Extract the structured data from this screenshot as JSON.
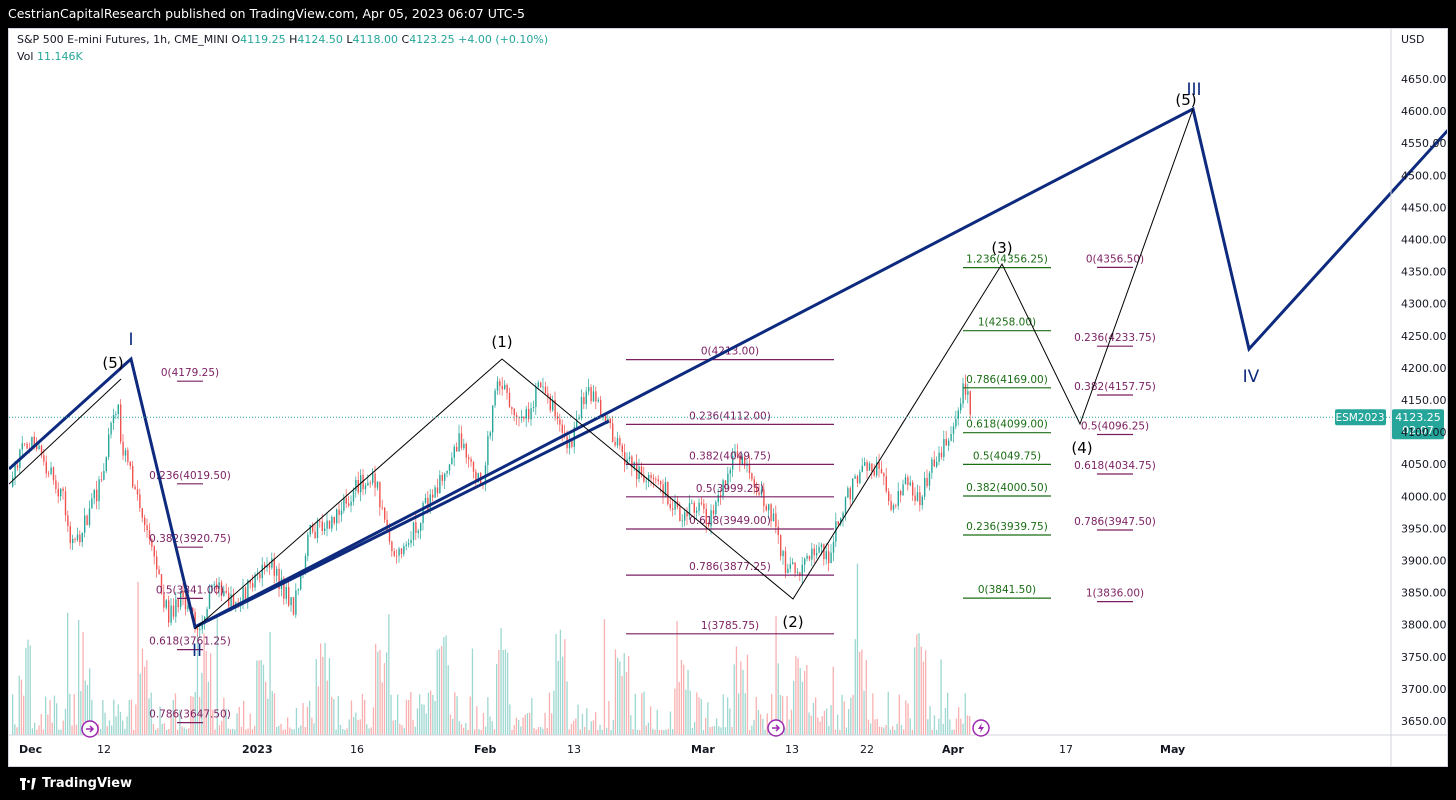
{
  "header": {
    "published_line": "CestrianCapitalResearch published on TradingView.com, Apr 05, 2023 06:07 UTC-5"
  },
  "legend": {
    "symbol": "S&P 500 E-mini Futures, 1h, CME_MINI",
    "open_label": "O",
    "open": "4119.25",
    "high_label": "H",
    "high": "4124.50",
    "low_label": "L",
    "low": "4118.00",
    "close_label": "C",
    "close": "4123.25",
    "change": "+4.00 (+0.10%)",
    "vol_label": "Vol",
    "vol_value": "11.146K"
  },
  "price_axis": {
    "currency": "USD",
    "ticks": [
      "4650.00",
      "4600.00",
      "4550.00",
      "4500.00",
      "4450.00",
      "4400.00",
      "4350.00",
      "4300.00",
      "4250.00",
      "4200.00",
      "4150.00",
      "4100.00",
      "4050.00",
      "4000.00",
      "3950.00",
      "3900.00",
      "3850.00",
      "3800.00",
      "3750.00",
      "3700.00",
      "3650.00"
    ]
  },
  "last_price": {
    "symbol_tag": "ESM2023",
    "price": "4123.25",
    "countdown": "02:07"
  },
  "time_axis": {
    "ticks": [
      "Dec",
      "12",
      "2023",
      "16",
      "Feb",
      "13",
      "Mar",
      "13",
      "22",
      "Apr",
      "17",
      "May"
    ]
  },
  "colors": {
    "up": "#26a69a",
    "down": "#ef5350",
    "major_wave": "#0d2a7e",
    "fib_purple": "#7b1f62",
    "fib_green": "#1b6e16",
    "last_price": "#26a69a"
  },
  "icons": {
    "dividend_marker": "forward-arrow-icon",
    "earnings_marker": "lightning-icon"
  },
  "chart_data": {
    "type": "candlestick",
    "instrument": "S&P 500 E-mini Futures, 1h, CME_MINI",
    "ylim": [
      3610,
      4690
    ],
    "wave_labels_major": [
      "I",
      "II",
      "III",
      "IV"
    ],
    "wave_labels_minor": [
      "(5)",
      "(1)",
      "(2)",
      "(3)",
      "(4)",
      "(5)"
    ],
    "fib_sets": [
      {
        "name": "",
        "levels": [
          {
            "ratio": "0",
            "price": "4179.25",
            "label": "0(4179.25)"
          },
          {
            "ratio": "0.236",
            "price": "4019.50",
            "label": "0.236(4019.50)"
          },
          {
            "ratio": "0.382",
            "price": "3920.75",
            "label": "0.382(3920.75)"
          },
          {
            "ratio": "0.5",
            "price": "3841.00",
            "label": "0.5(3841.00)"
          },
          {
            "ratio": "0.618",
            "price": "3761.25",
            "label": "0.618(3761.25)"
          },
          {
            "ratio": "0.786",
            "price": "3647.50",
            "label": "0.786(3647.50)"
          }
        ]
      },
      {
        "name": "",
        "levels": [
          {
            "ratio": "0",
            "price": "4213.00",
            "label": "0(4213.00)"
          },
          {
            "ratio": "0.236",
            "price": "4112.00",
            "label": "0.236(4112.00)"
          },
          {
            "ratio": "0.382",
            "price": "4049.75",
            "label": "0.382(4049.75)"
          },
          {
            "ratio": "0.5",
            "price": "3999.25",
            "label": "0.5(3999.25)"
          },
          {
            "ratio": "0.618",
            "price": "3949.00",
            "label": "0.618(3949.00)"
          },
          {
            "ratio": "0.786",
            "price": "3877.25",
            "label": "0.786(3877.25)"
          },
          {
            "ratio": "1",
            "price": "3785.75",
            "label": "1(3785.75)"
          }
        ]
      },
      {
        "name": "",
        "levels": [
          {
            "ratio": "1.236",
            "price": "4356.25",
            "label": "1.236(4356.25)"
          },
          {
            "ratio": "1",
            "price": "4258.00",
            "label": "1(4258.00)"
          },
          {
            "ratio": "0.786",
            "price": "4169.00",
            "label": "0.786(4169.00)"
          },
          {
            "ratio": "0.618",
            "price": "4099.00",
            "label": "0.618(4099.00)"
          },
          {
            "ratio": "0.5",
            "price": "4049.75",
            "label": "0.5(4049.75)"
          },
          {
            "ratio": "0.382",
            "price": "4000.50",
            "label": "0.382(4000.50)"
          },
          {
            "ratio": "0.236",
            "price": "3939.75",
            "label": "0.236(3939.75)"
          },
          {
            "ratio": "0",
            "price": "3841.50",
            "label": "0(3841.50)"
          }
        ]
      },
      {
        "name": "",
        "levels": [
          {
            "ratio": "0",
            "price": "4356.50",
            "label": "0(4356.50)"
          },
          {
            "ratio": "0.236",
            "price": "4233.75",
            "label": "0.236(4233.75)"
          },
          {
            "ratio": "0.382",
            "price": "4157.75",
            "label": "0.382(4157.75)"
          },
          {
            "ratio": "0.5",
            "price": "4096.25",
            "label": "0.5(4096.25)"
          },
          {
            "ratio": "0.618",
            "price": "4034.75",
            "label": "0.618(4034.75)"
          },
          {
            "ratio": "0.786",
            "price": "3947.50",
            "label": "0.786(3947.50)"
          },
          {
            "ratio": "1",
            "price": "3836.00",
            "label": "1(3836.00)"
          }
        ]
      }
    ]
  },
  "footer": {
    "brand": "TradingView"
  }
}
